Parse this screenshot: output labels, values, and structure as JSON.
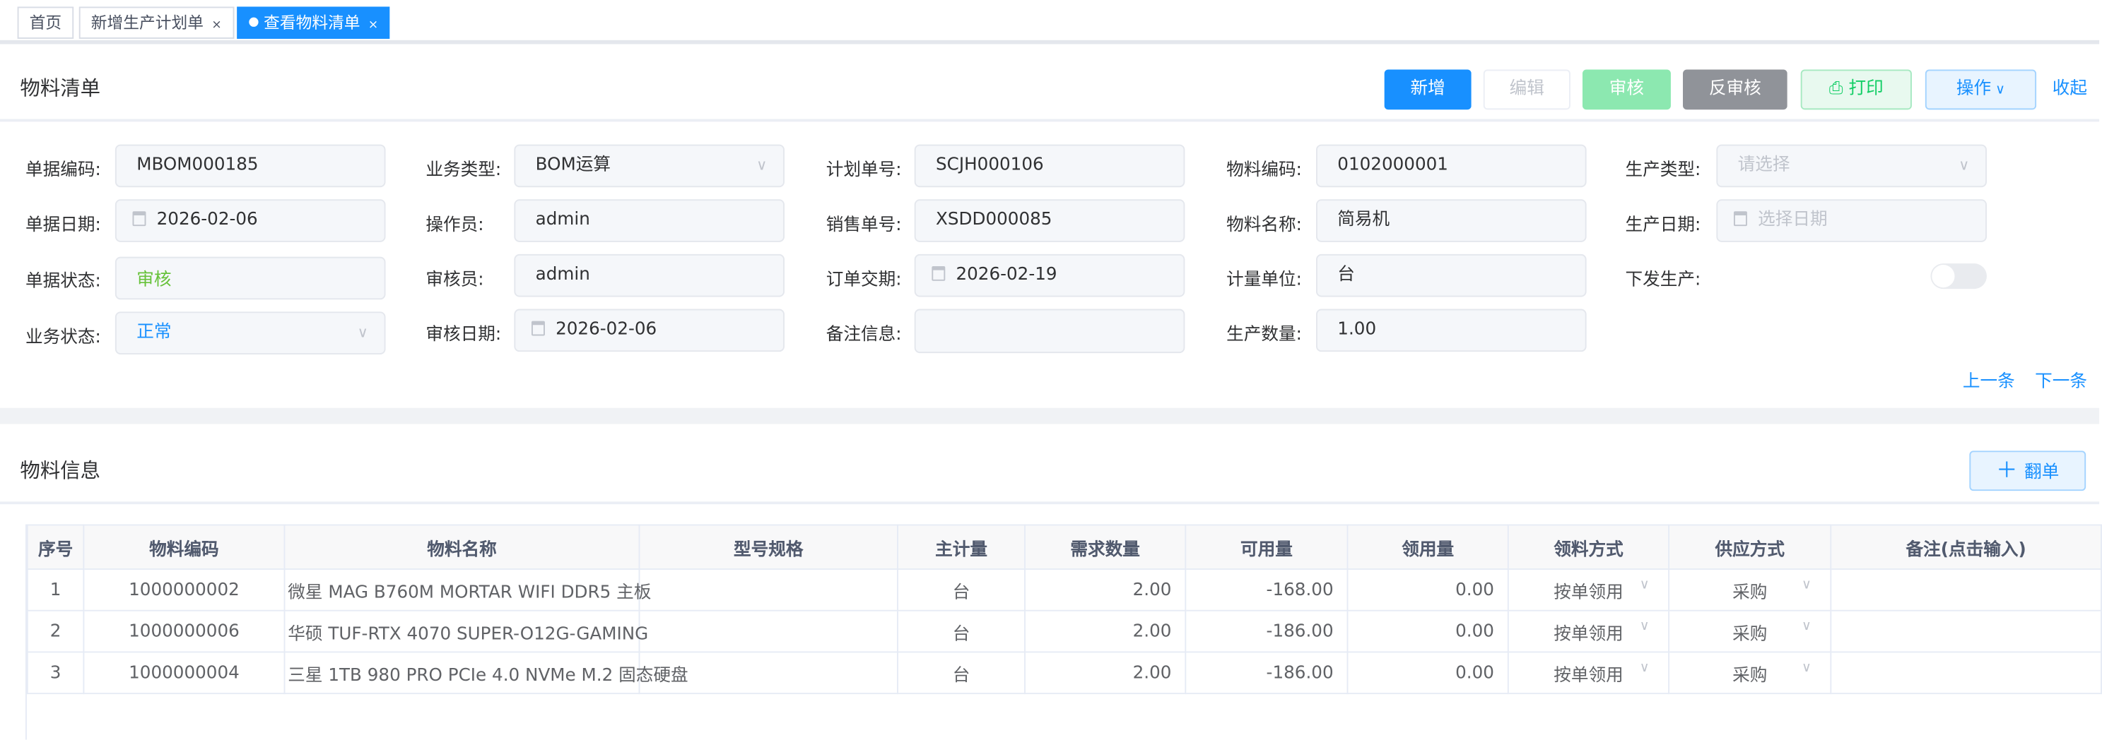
{
  "tabs": [
    {
      "label": "首页",
      "active": false
    },
    {
      "label": "新增生产计划单",
      "active": false,
      "close": "×"
    },
    {
      "label": "查看物料清单",
      "active": true,
      "close": "×"
    }
  ],
  "header": {
    "title": "物料清单",
    "buttons": {
      "add": "新增",
      "edit": "编辑",
      "audit": "审核",
      "unaudit": "反审核",
      "print": "打印",
      "ops": "操作",
      "collapse": "收起"
    }
  },
  "colors": {
    "primary": "#1890ff",
    "audit_green": "#8ce8b0",
    "unaudit_gray": "#909399",
    "status_green": "#67c23a"
  },
  "form": {
    "doc_code": {
      "label": "单据编码:",
      "value": "MBOM000185"
    },
    "biz_type": {
      "label": "业务类型:",
      "value": "BOM运算"
    },
    "plan_no": {
      "label": "计划单号:",
      "value": "SCJH000106"
    },
    "mat_code": {
      "label": "物料编码:",
      "value": "0102000001"
    },
    "prod_type": {
      "label": "生产类型:",
      "placeholder": "请选择"
    },
    "doc_date": {
      "label": "单据日期:",
      "value": "2026-02-06"
    },
    "operator": {
      "label": "操作员:",
      "value": "admin"
    },
    "sales_no": {
      "label": "销售单号:",
      "value": "XSDD000085"
    },
    "mat_name": {
      "label": "物料名称:",
      "value": "简易机"
    },
    "prod_date": {
      "label": "生产日期:",
      "placeholder": "选择日期"
    },
    "doc_status": {
      "label": "单据状态:",
      "value": "审核"
    },
    "auditor": {
      "label": "审核员:",
      "value": "admin"
    },
    "order_delivery": {
      "label": "订单交期:",
      "value": "2026-02-19"
    },
    "unit": {
      "label": "计量单位:",
      "value": "台"
    },
    "dispatch": {
      "label": "下发生产:",
      "on": false
    },
    "biz_status": {
      "label": "业务状态:",
      "value": "正常"
    },
    "audit_date": {
      "label": "审核日期:",
      "value": "2026-02-06"
    },
    "remark": {
      "label": "备注信息:",
      "value": ""
    },
    "qty": {
      "label": "生产数量:",
      "value": "1.00"
    }
  },
  "nav": {
    "prev": "上一条",
    "next": "下一条"
  },
  "materials": {
    "title": "物料信息",
    "copy_button": "翻单",
    "copy_icon": "plus-icon",
    "columns": [
      "序号",
      "物料编码",
      "物料名称",
      "型号规格",
      "主计量",
      "需求数量",
      "可用量",
      "领用量",
      "领料方式",
      "供应方式",
      "备注(点击输入)"
    ],
    "rows": [
      {
        "no": "1",
        "code": "1000000002",
        "name": "微星 MAG B760M MORTAR WIFI DDR5 主板",
        "spec": "",
        "unit": "台",
        "need": "2.00",
        "avail": "-168.00",
        "used": "0.00",
        "pick": "按单领用",
        "supply": "采购",
        "note": ""
      },
      {
        "no": "2",
        "code": "1000000006",
        "name": "华硕 TUF-RTX 4070 SUPER-O12G-GAMING",
        "spec": "",
        "unit": "台",
        "need": "2.00",
        "avail": "-186.00",
        "used": "0.00",
        "pick": "按单领用",
        "supply": "采购",
        "note": ""
      },
      {
        "no": "3",
        "code": "1000000004",
        "name": "三星 1TB 980 PRO PCIe 4.0 NVMe M.2 固态硬盘",
        "spec": "",
        "unit": "台",
        "need": "2.00",
        "avail": "-186.00",
        "used": "0.00",
        "pick": "按单领用",
        "supply": "采购",
        "note": ""
      }
    ]
  }
}
